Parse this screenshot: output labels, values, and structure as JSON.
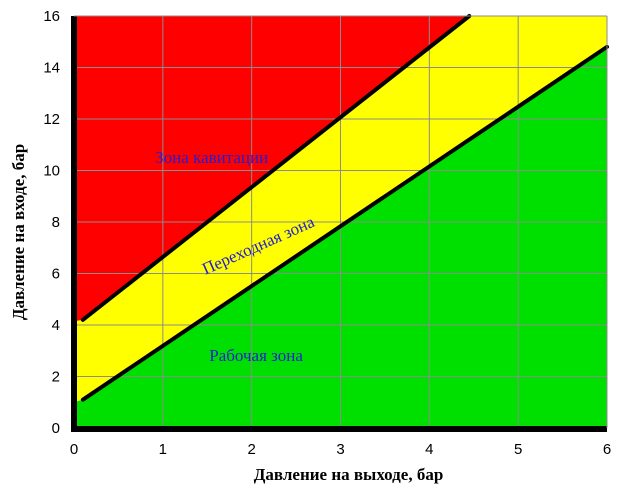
{
  "chart_data": {
    "type": "area",
    "title": "",
    "xlabel": "Давление на выходе, бар",
    "ylabel": "Давление на входе, бар",
    "xlim": [
      0,
      6
    ],
    "ylim": [
      0,
      16
    ],
    "x_ticks": [
      "0",
      "1",
      "2",
      "3",
      "4",
      "5",
      "6"
    ],
    "y_ticks": [
      "0",
      "2",
      "4",
      "6",
      "8",
      "10",
      "12",
      "14",
      "16"
    ],
    "grid": true,
    "colors": {
      "cavitation": "#ff0000",
      "transition": "#ffff00",
      "working": "#00e000",
      "boundary": "#000000",
      "grid": "#8c8c8c",
      "zone_text": "#1f1fd6"
    },
    "boundaries": [
      {
        "id": "cavitation_transition",
        "points": [
          [
            0.1,
            4.2
          ],
          [
            4.45,
            16
          ]
        ]
      },
      {
        "id": "transition_working",
        "points": [
          [
            0.1,
            1.1
          ],
          [
            6,
            14.8
          ]
        ]
      }
    ],
    "zones": [
      {
        "id": "cavitation",
        "label": "Зона кавитации",
        "label_at": [
          1.55,
          10.3
        ],
        "angle": 0
      },
      {
        "id": "transition",
        "label": "Переходная зона",
        "label_at": [
          2.1,
          6.9
        ],
        "angle": -24
      },
      {
        "id": "working",
        "label": "Рабочая зона",
        "label_at": [
          2.05,
          2.6
        ],
        "angle": 0
      }
    ]
  }
}
